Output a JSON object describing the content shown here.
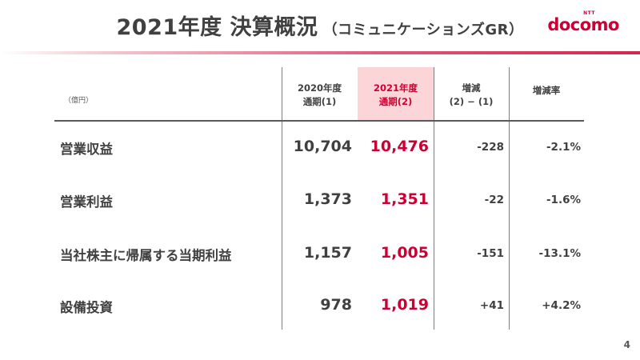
{
  "header": {
    "title": "2021年度 決算概況",
    "subtitle": "（コミュニケーションズGR）",
    "logo_small": "NTT",
    "logo_brand": "docomo"
  },
  "table": {
    "unit": "（億円）",
    "columns": [
      {
        "line1": "2020年度",
        "line2": "通期(1)"
      },
      {
        "line1": "2021年度",
        "line2": "通期(2)"
      },
      {
        "line1": "増減",
        "line2": "(2) − (1)"
      },
      {
        "line1": "増減率",
        "line2": ""
      }
    ],
    "rows": [
      {
        "label": "営業収益",
        "fy2020": "10,704",
        "fy2021": "10,476",
        "diff": "-228",
        "rate": "-2.1%"
      },
      {
        "label": "営業利益",
        "fy2020": "1,373",
        "fy2021": "1,351",
        "diff": "-22",
        "rate": "-1.6%"
      },
      {
        "label": "当社株主に帰属する当期利益",
        "fy2020": "1,157",
        "fy2021": "1,005",
        "diff": "-151",
        "rate": "-13.1%"
      },
      {
        "label": "設備投資",
        "fy2020": "978",
        "fy2021": "1,019",
        "diff": "+41",
        "rate": "+4.2%"
      }
    ]
  },
  "footer": {
    "page_number": "4"
  },
  "colors": {
    "accent_red": "#cc0033",
    "highlight": "#fbd5d7",
    "text": "#404040"
  }
}
